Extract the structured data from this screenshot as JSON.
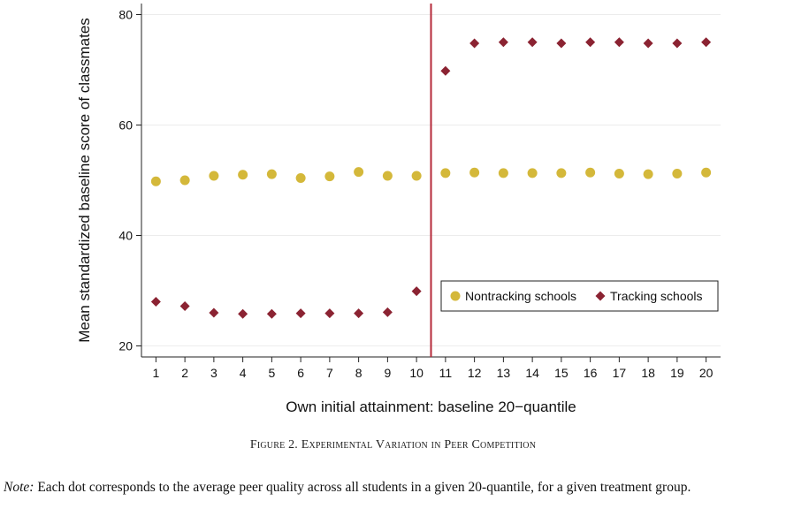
{
  "chart_data": {
    "type": "scatter",
    "xlabel": "Own initial attainment:  baseline 20−quantile",
    "ylabel": "Mean standardized baseline score of classmates",
    "x": [
      1,
      2,
      3,
      4,
      5,
      6,
      7,
      8,
      9,
      10,
      11,
      12,
      13,
      14,
      15,
      16,
      17,
      18,
      19,
      20
    ],
    "x_ticks": [
      "1",
      "2",
      "3",
      "4",
      "5",
      "6",
      "7",
      "8",
      "9",
      "10",
      "11",
      "12",
      "13",
      "14",
      "15",
      "16",
      "17",
      "18",
      "19",
      "20"
    ],
    "y_ticks": [
      "20",
      "40",
      "60",
      "80"
    ],
    "ylim": [
      18,
      82
    ],
    "xlim": [
      0.5,
      20.5
    ],
    "cutoff_x": 10.5,
    "grid": true,
    "legend_position": "bottom-right",
    "series": [
      {
        "name": "Nontracking schools",
        "marker": "circle",
        "color": "#d4b83a",
        "values": [
          49.8,
          50.0,
          50.8,
          51.0,
          51.1,
          50.4,
          50.7,
          51.5,
          50.8,
          50.8,
          51.3,
          51.4,
          51.3,
          51.3,
          51.3,
          51.4,
          51.2,
          51.1,
          51.2,
          51.4
        ]
      },
      {
        "name": "Tracking schools",
        "marker": "diamond",
        "color": "#8b2332",
        "values": [
          28.0,
          27.2,
          26.0,
          25.8,
          25.8,
          25.9,
          25.9,
          25.9,
          26.1,
          29.9,
          69.8,
          74.8,
          75.0,
          75.0,
          74.8,
          75.0,
          75.0,
          74.8,
          74.8,
          75.0
        ]
      }
    ],
    "line_color": "#b52a3a"
  },
  "caption": {
    "prefix": "F",
    "text": "IGURE 2. E",
    "full": "Figure 2. Experimental Variation in Peer Competition"
  },
  "note": {
    "label": "Note:",
    "text": " Each dot corresponds to the average peer quality across all students in a given 20-quantile, for a given treatment group."
  }
}
